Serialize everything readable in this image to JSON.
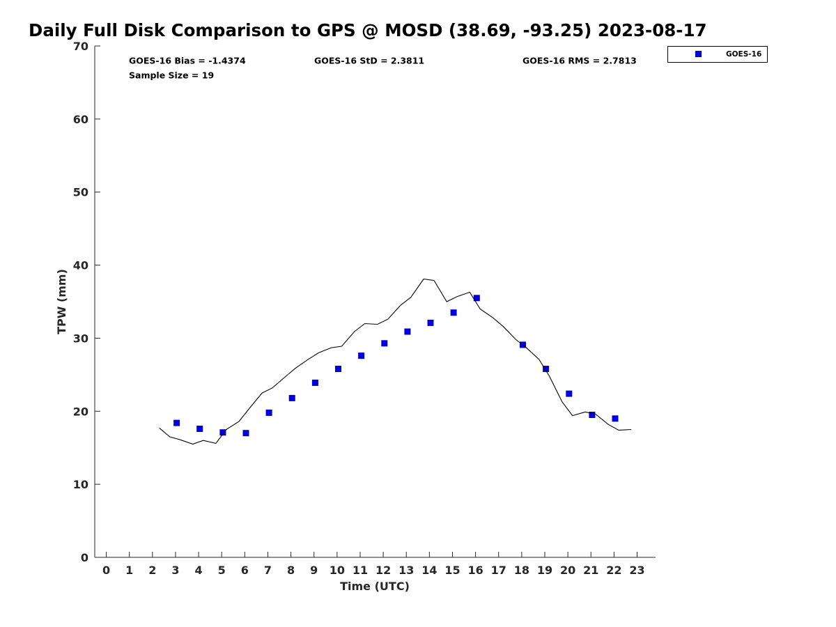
{
  "chart_data": {
    "type": "scatter",
    "title": "Daily Full Disk Comparison to GPS @ MOSD (38.69, -93.25) 2023-08-17",
    "xlabel": "Time (UTC)",
    "ylabel": "TPW (mm)",
    "xlim": [
      -0.5,
      23.8
    ],
    "ylim": [
      0,
      70
    ],
    "x_ticks": [
      0,
      1,
      2,
      3,
      4,
      5,
      6,
      7,
      8,
      9,
      10,
      11,
      12,
      13,
      14,
      15,
      16,
      17,
      18,
      19,
      20,
      21,
      22,
      23
    ],
    "y_ticks": [
      0,
      10,
      20,
      30,
      40,
      50,
      60,
      70
    ],
    "grid": false,
    "legend_position": "outside top-right",
    "stats": {
      "bias": "GOES-16 Bias = -1.4374",
      "std": "GOES-16 StD = 2.3811",
      "rms": "GOES-16 RMS = 2.7813",
      "sample_size": "Sample Size = 19"
    },
    "series": [
      {
        "name": "GOES-16",
        "style": "square-marker",
        "color": "#0000dd",
        "points": [
          [
            3.05,
            18.4
          ],
          [
            4.05,
            17.6
          ],
          [
            5.05,
            17.1
          ],
          [
            6.05,
            17.0
          ],
          [
            7.05,
            19.8
          ],
          [
            8.05,
            21.8
          ],
          [
            9.05,
            23.9
          ],
          [
            10.05,
            25.8
          ],
          [
            11.05,
            27.6
          ],
          [
            12.05,
            29.3
          ],
          [
            13.05,
            30.9
          ],
          [
            14.05,
            32.1
          ],
          [
            15.05,
            33.5
          ],
          [
            16.05,
            35.5
          ],
          [
            18.05,
            29.1
          ],
          [
            19.05,
            25.8
          ],
          [
            20.05,
            22.4
          ],
          [
            21.05,
            19.5
          ],
          [
            22.05,
            19.0
          ]
        ]
      },
      {
        "style": "line",
        "color": "#000000",
        "points": [
          [
            2.3,
            17.7
          ],
          [
            2.75,
            16.5
          ],
          [
            3.2,
            16.1
          ],
          [
            3.75,
            15.5
          ],
          [
            4.2,
            16.0
          ],
          [
            4.75,
            15.6
          ],
          [
            5.2,
            17.5
          ],
          [
            5.75,
            18.6
          ],
          [
            6.2,
            20.4
          ],
          [
            6.75,
            22.5
          ],
          [
            7.2,
            23.2
          ],
          [
            7.75,
            24.7
          ],
          [
            8.2,
            25.9
          ],
          [
            8.75,
            27.1
          ],
          [
            9.2,
            28.0
          ],
          [
            9.75,
            28.7
          ],
          [
            10.2,
            28.9
          ],
          [
            10.75,
            30.9
          ],
          [
            11.2,
            32.0
          ],
          [
            11.75,
            31.9
          ],
          [
            12.2,
            32.6
          ],
          [
            12.75,
            34.5
          ],
          [
            13.2,
            35.6
          ],
          [
            13.75,
            38.1
          ],
          [
            14.2,
            37.9
          ],
          [
            14.75,
            35.0
          ],
          [
            15.2,
            35.7
          ],
          [
            15.75,
            36.3
          ],
          [
            16.2,
            34.0
          ],
          [
            16.75,
            32.8
          ],
          [
            17.2,
            31.6
          ],
          [
            17.75,
            29.8
          ],
          [
            18.2,
            28.7
          ],
          [
            18.75,
            27.1
          ],
          [
            19.2,
            24.8
          ],
          [
            19.75,
            21.3
          ],
          [
            20.2,
            19.4
          ],
          [
            20.75,
            19.9
          ],
          [
            21.2,
            19.6
          ],
          [
            21.75,
            18.2
          ],
          [
            22.2,
            17.4
          ],
          [
            22.75,
            17.5
          ]
        ]
      }
    ]
  }
}
